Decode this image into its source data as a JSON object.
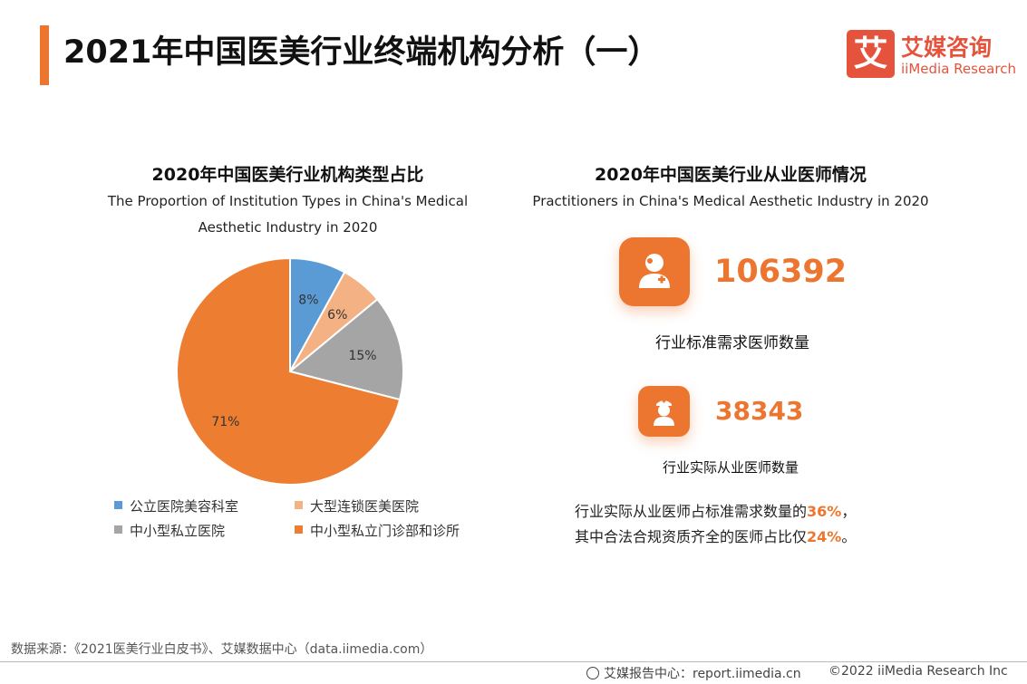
{
  "header": {
    "title": "2021年中国医美行业终端机构分析（一）",
    "logo_mark": "艾",
    "logo_cn": "艾媒咨询",
    "logo_en": "iiMedia Research"
  },
  "colors": {
    "accent": "#ec7630",
    "brand": "#e5533c"
  },
  "chart_data": {
    "type": "pie",
    "title": "2020年中国医美行业机构类型占比",
    "subtitle": "The Proportion of Institution Types in China's Medical Aesthetic Industry in 2020",
    "categories": [
      "公立医院美容科室",
      "大型连锁医美医院",
      "中小型私立医院",
      "中小型私立门诊部和诊所"
    ],
    "values": [
      8,
      6,
      15,
      71
    ],
    "labels": [
      "8%",
      "6%",
      "15%",
      "71%"
    ],
    "colors": [
      "#5b9bd5",
      "#f4b183",
      "#a5a5a5",
      "#ed7d31"
    ],
    "legend_position": "bottom"
  },
  "practitioners": {
    "title": "2020年中国医美行业从业医师情况",
    "subtitle": "Practitioners in China's Medical Aesthetic Industry in 2020",
    "standard": {
      "value": "106392",
      "label": "行业标准需求医师数量",
      "icon": "doctor-icon"
    },
    "actual": {
      "value": "38343",
      "label": "行业实际从业医师数量",
      "icon": "nurse-icon"
    },
    "summary_line1_prefix": "行业实际从业医师占标准需求数量的",
    "summary_line1_pct": "36%",
    "summary_line1_suffix": "，",
    "summary_line2_prefix": "其中合法合规资质齐全的医师占比仅",
    "summary_line2_pct": "24%",
    "summary_line2_suffix": "。"
  },
  "footer": {
    "source": "数据来源：《2021医美行业白皮书》、艾媒数据中心（data.iimedia.com）",
    "report_center": "艾媒报告中心：report.iimedia.cn",
    "copyright": "©2022  iiMedia Research  Inc"
  }
}
